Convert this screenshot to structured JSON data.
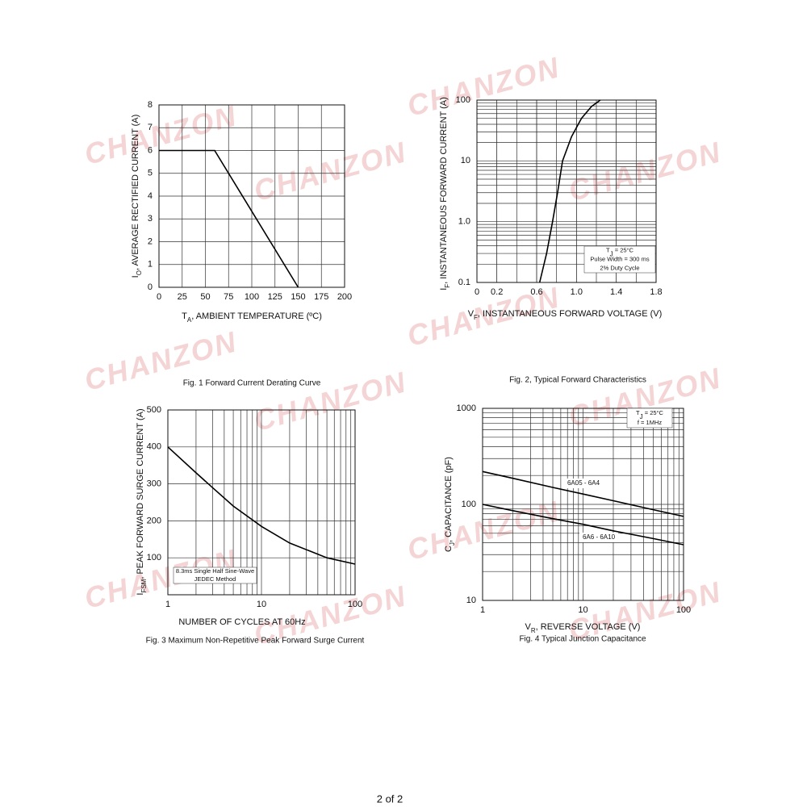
{
  "watermark": "CHANZON",
  "footer": "2 of 2",
  "chart_data": [
    {
      "type": "line",
      "caption": "Fig. 1  Forward Current Derating Curve",
      "xlabel": {
        "text": "T",
        "sub": "A",
        "rest": ", AMBIENT TEMPERATURE (ºC)"
      },
      "ylabel": {
        "text": "I",
        "sub": "O",
        "rest": ", AVERAGE RECTIFIED CURRENT (A)"
      },
      "x": [
        0,
        60,
        150
      ],
      "values": [
        6,
        6,
        0
      ],
      "color": "#000000",
      "xlim": [
        0,
        200
      ],
      "xticks": [
        0,
        25,
        50,
        75,
        100,
        125,
        150,
        175,
        200
      ],
      "ylim": [
        0,
        8
      ],
      "yticks": [
        0,
        1,
        2,
        3,
        4,
        5,
        6,
        7,
        8
      ],
      "grid": true
    },
    {
      "type": "line",
      "caption": "Fig. 2, Typical Forward Characteristics",
      "xlabel": {
        "text": "V",
        "sub": "F",
        "rest": ", INSTANTANEOUS FORWARD VOLTAGE (V)"
      },
      "ylabel": {
        "text": "I",
        "sub": "F",
        "rest": ", INSTANTANEOUS FORWARD CURRENT (A)"
      },
      "x": [
        0.63,
        0.7,
        0.76,
        0.81,
        0.86,
        0.95,
        1.05,
        1.15,
        1.24
      ],
      "values": [
        0.1,
        0.3,
        1,
        3,
        10,
        25,
        50,
        78,
        100
      ],
      "color": "#000000",
      "xlim": [
        0,
        1.8
      ],
      "xticks": [
        0,
        0.2,
        0.6,
        {
          "value": 1,
          "label": "1.0"
        },
        1.4,
        1.8
      ],
      "xgrid": [
        0,
        0.2,
        0.4,
        0.6,
        0.8,
        1,
        1.2,
        1.4,
        1.6,
        1.8
      ],
      "ylim": [
        0.1,
        100
      ],
      "ylog": true,
      "yticks": [
        0.1,
        {
          "value": 1,
          "label": "1.0"
        },
        10,
        100
      ],
      "grid": true,
      "annotation": [
        {
          "text": "T",
          "sub": "J",
          "rest": " = 25°C"
        },
        "Pulse Width = 300 ms",
        "2% Duty Cycle"
      ]
    },
    {
      "type": "line",
      "caption": "Fig. 3  Maximum Non-Repetitive Peak Forward Surge Current",
      "xlabel": "NUMBER OF CYCLES AT 60Hz",
      "ylabel": {
        "text": "I",
        "sub": "FSM",
        "rest": ", PEAK FORWARD SURGE CURRENT (A)"
      },
      "x": [
        1,
        2,
        3,
        5,
        10,
        20,
        50,
        100
      ],
      "values": [
        400,
        330,
        290,
        240,
        185,
        140,
        100,
        83
      ],
      "color": "#000000",
      "xlim": [
        1,
        100
      ],
      "xlog": true,
      "xticks": [
        1,
        10,
        100
      ],
      "ylim": [
        0,
        500
      ],
      "yticks": [
        100,
        200,
        300,
        400,
        500
      ],
      "grid": true,
      "annotation": [
        "8.3ms Single Half Sine-Wave",
        "JEDEC Method"
      ]
    },
    {
      "type": "line",
      "caption": "Fig. 4  Typical Junction Capacitance",
      "xlabel": {
        "text": "V",
        "sub": "R",
        "rest": ", REVERSE VOLTAGE (V)"
      },
      "ylabel": {
        "text": "C",
        "sub": "J",
        "rest": ", CAPACITANCE (pF)"
      },
      "x": [
        1,
        2,
        5,
        10,
        20,
        50,
        100
      ],
      "series": [
        {
          "name": "6A05 - 6A4",
          "color": "#000000",
          "values": [
            220,
            187,
            150,
            128,
            109,
            88,
            75
          ]
        },
        {
          "name": "6A6 - 6A10",
          "color": "#000000",
          "values": [
            100,
            86,
            71,
            62,
            53,
            44,
            38
          ]
        }
      ],
      "xlim": [
        1,
        100
      ],
      "xlog": true,
      "xticks": [
        1,
        10,
        100
      ],
      "ylim": [
        10,
        1000
      ],
      "ylog": true,
      "yticks": [
        10,
        100,
        1000
      ],
      "grid": true,
      "annotation": [
        {
          "text": "T",
          "sub": "J",
          "rest": " = 25°C"
        },
        "f = 1MHz"
      ]
    }
  ]
}
